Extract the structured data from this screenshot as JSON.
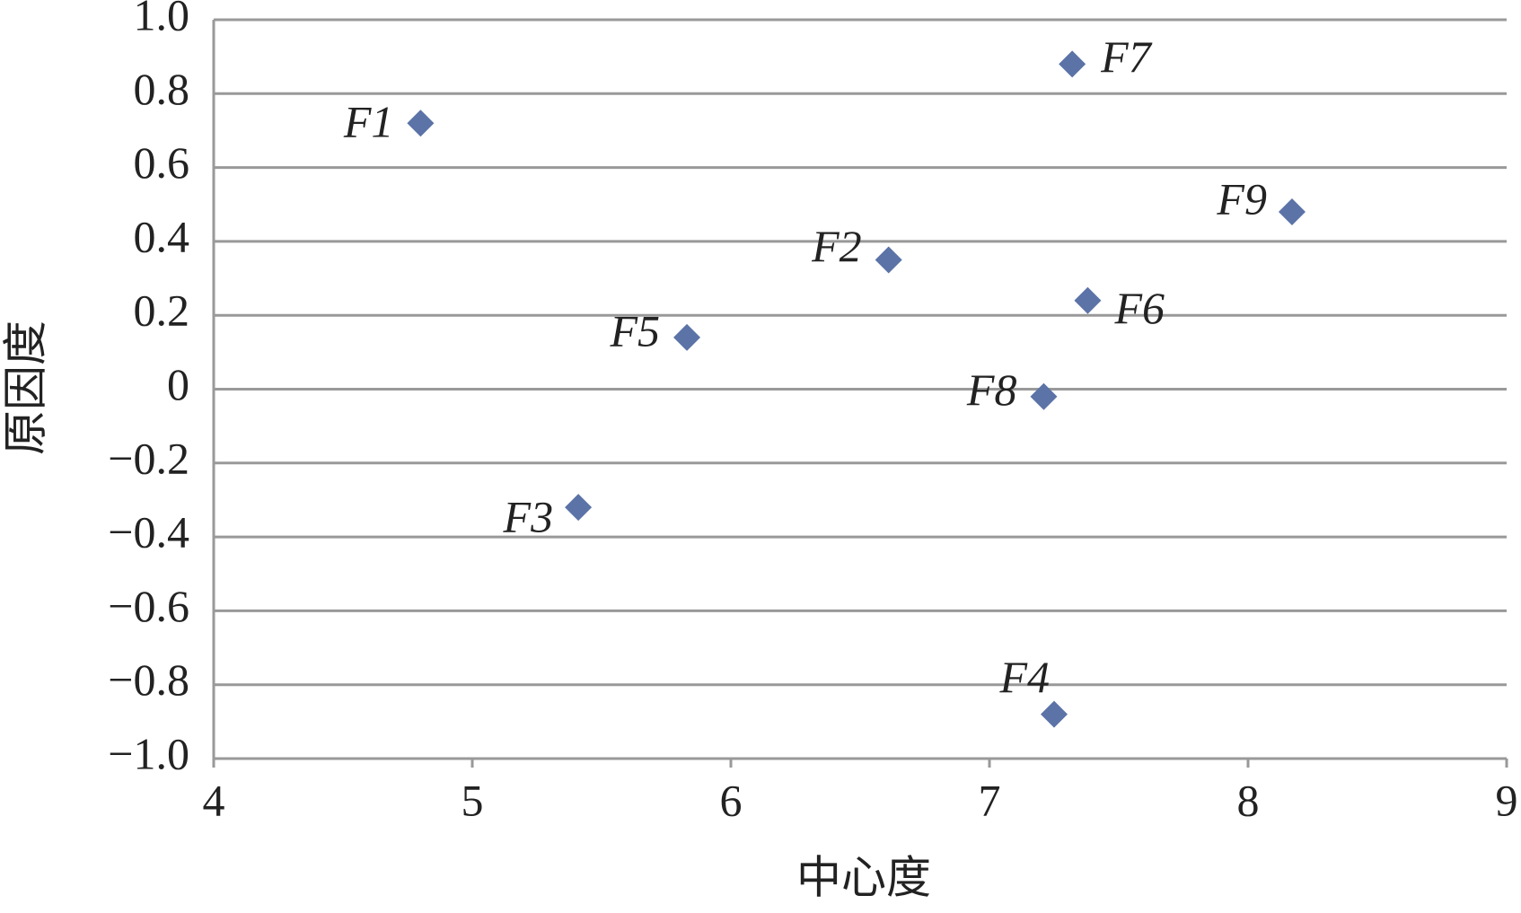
{
  "chart_data": {
    "type": "scatter",
    "x_label": "中心度",
    "y_label": "原因度",
    "x": [
      4.8,
      6.61,
      5.41,
      7.25,
      5.83,
      7.38,
      7.32,
      7.21,
      8.17
    ],
    "values": [
      0.72,
      0.35,
      -0.32,
      -0.88,
      0.14,
      0.24,
      0.88,
      -0.02,
      0.48
    ],
    "labels": [
      "F1",
      "F2",
      "F3",
      "F4",
      "F5",
      "F6",
      "F7",
      "F8",
      "F9"
    ],
    "color": "#5b73a7",
    "xlim": [
      4,
      9
    ],
    "xticks": [
      4,
      5,
      6,
      7,
      8,
      9
    ],
    "ylim": [
      -1.0,
      1.0
    ],
    "yticks": [
      {
        "value": -1.0,
        "label": "−1.0"
      },
      {
        "value": -0.8,
        "label": "−0.8"
      },
      {
        "value": -0.6,
        "label": "−0.6"
      },
      {
        "value": -0.4,
        "label": "−0.4"
      },
      {
        "value": -0.2,
        "label": "−0.2"
      },
      0,
      0.2,
      0.4,
      0.6,
      0.8,
      {
        "value": 1.0,
        "label": "1.0"
      }
    ],
    "grid": true
  }
}
